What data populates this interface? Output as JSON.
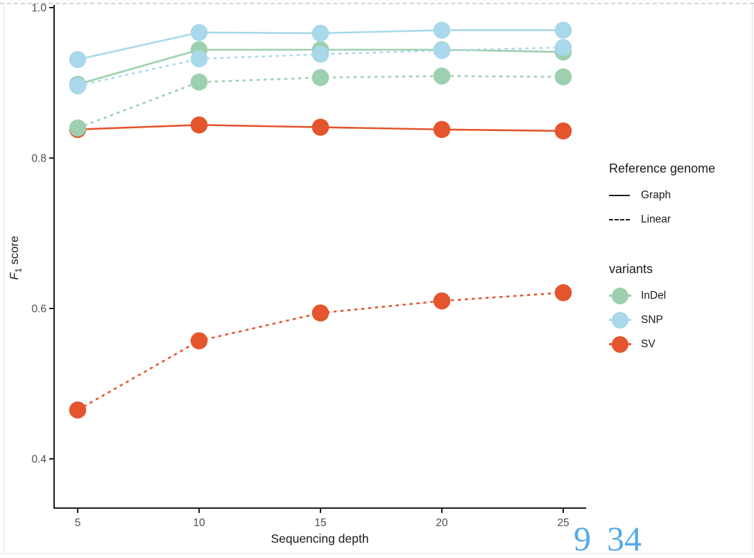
{
  "axis": {
    "x": {
      "label": "Sequencing depth"
    },
    "y": {
      "label_f": "F",
      "label_sub": "1",
      "label_rest": " score"
    }
  },
  "legend": {
    "reference_genome": {
      "title": "Reference genome",
      "items": [
        {
          "label": "Graph",
          "style": "solid"
        },
        {
          "label": "Linear",
          "style": "dashed"
        }
      ]
    },
    "variants": {
      "title": "variants",
      "items": [
        {
          "label": "InDel",
          "color": "#9DD0AE"
        },
        {
          "label": "SNP",
          "color": "#A9D8EA"
        },
        {
          "label": "SV",
          "color": "#E4552D"
        }
      ]
    }
  },
  "page_numbers": {
    "first": "9",
    "second": "34",
    "color": "#55A9E9"
  },
  "colors": {
    "axis": "#1a1a1a",
    "tick_label": "#4d4d4d",
    "snp": "#A9D8EA",
    "indel": "#9DD0AE",
    "sv": "#E4552D",
    "page_number": "#55A9E9"
  },
  "chart_data": {
    "type": "line",
    "title": "",
    "xlabel": "Sequencing depth",
    "ylabel": "F1 score",
    "x": [
      5,
      10,
      15,
      20,
      25
    ],
    "x_ticks": [
      {
        "v": 5,
        "label": "5"
      },
      {
        "v": 10,
        "label": "10"
      },
      {
        "v": 15,
        "label": "15"
      },
      {
        "v": 20,
        "label": "20"
      },
      {
        "v": 25,
        "label": "25"
      }
    ],
    "y_ticks": [
      {
        "v": 0.4,
        "label": "0.4"
      },
      {
        "v": 0.6,
        "label": "0.6"
      },
      {
        "v": 0.8,
        "label": "0.8"
      },
      {
        "v": 1.0,
        "label": "1.0"
      }
    ],
    "xlim": [
      4,
      26
    ],
    "ylim": [
      0.335,
      1.0
    ],
    "grid": false,
    "legend_position": "right",
    "series": [
      {
        "name": "SV Graph",
        "variant": "SV",
        "reference": "Graph",
        "style": "solid",
        "color": "#E4552D",
        "values": [
          0.838,
          0.844,
          0.841,
          0.838,
          0.836
        ]
      },
      {
        "name": "SV Linear",
        "variant": "SV",
        "reference": "Linear",
        "style": "dashed",
        "color": "#E4552D",
        "values": [
          0.465,
          0.557,
          0.594,
          0.61,
          0.621
        ]
      },
      {
        "name": "InDel Graph",
        "variant": "InDel",
        "reference": "Graph",
        "style": "solid",
        "color": "#9DD0AE",
        "values": [
          0.898,
          0.944,
          0.944,
          0.944,
          0.941
        ]
      },
      {
        "name": "InDel Linear",
        "variant": "InDel",
        "reference": "Linear",
        "style": "dashed",
        "color": "#9DD0AE",
        "values": [
          0.84,
          0.901,
          0.907,
          0.909,
          0.908
        ]
      },
      {
        "name": "SNP Graph",
        "variant": "SNP",
        "reference": "Graph",
        "style": "solid",
        "color": "#A9D8EA",
        "values": [
          0.931,
          0.967,
          0.966,
          0.97,
          0.97
        ]
      },
      {
        "name": "SNP Linear",
        "variant": "SNP",
        "reference": "Linear",
        "style": "dashed",
        "color": "#A9D8EA",
        "values": [
          0.896,
          0.932,
          0.938,
          0.943,
          0.947
        ]
      }
    ]
  }
}
